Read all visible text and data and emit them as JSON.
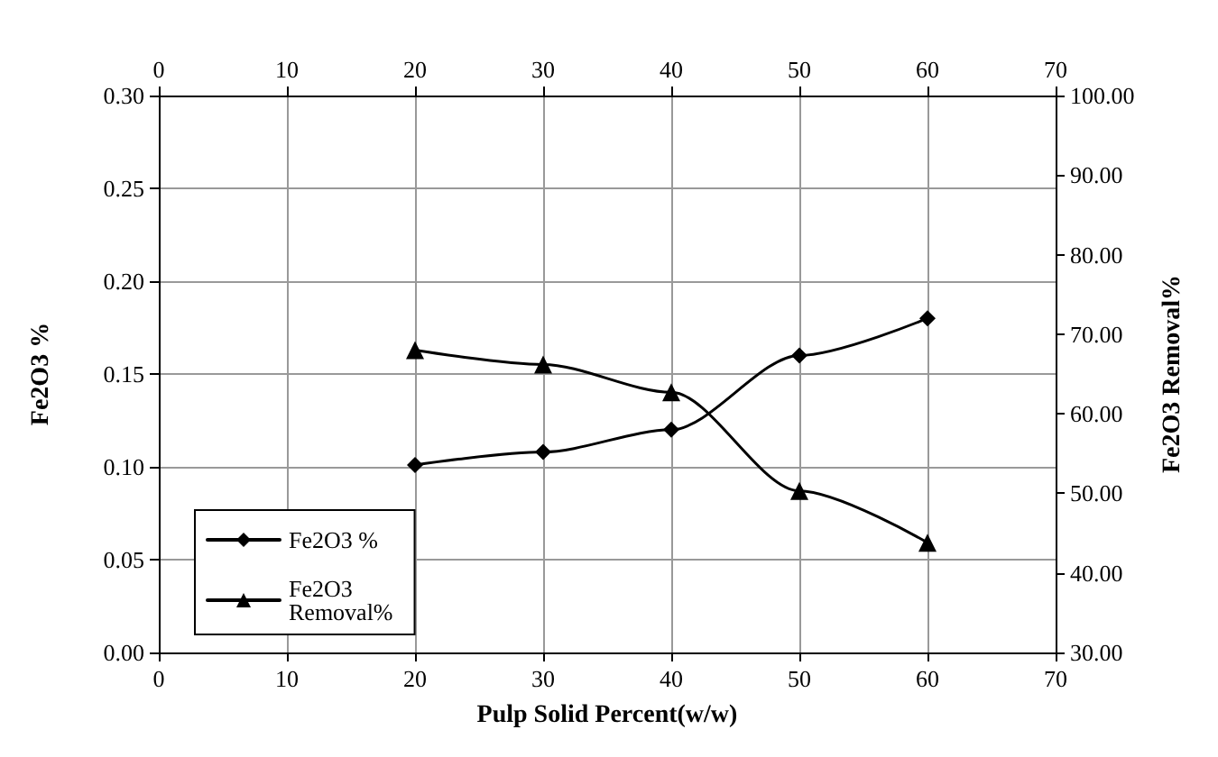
{
  "chart_data": {
    "type": "line",
    "xlabel": "Pulp Solid Percent(w/w)",
    "ylabel": "Fe2O3 %",
    "y2label": "Fe2O3 Removal%",
    "x": [
      20,
      30,
      40,
      50,
      60
    ],
    "series": [
      {
        "name": "Fe2O3 %",
        "color": "#000000",
        "marker": "diamond",
        "values": [
          0.101,
          0.108,
          0.12,
          0.16,
          0.18
        ]
      },
      {
        "name": "Fe2O3 Removal%",
        "color": "#000000",
        "marker": "triangle",
        "axis": "y2",
        "values": [
          68.0,
          66.2,
          62.7,
          50.3,
          43.8
        ]
      }
    ],
    "xlim": [
      0,
      70
    ],
    "xticks": [
      0,
      10,
      20,
      30,
      40,
      50,
      60,
      70
    ],
    "x2lim": [
      0,
      70
    ],
    "x2ticks": [
      0,
      10,
      20,
      30,
      40,
      50,
      60,
      70
    ],
    "ylim": [
      0,
      0.3
    ],
    "yticks": [
      {
        "value": 0,
        "label": "0.00"
      },
      {
        "value": 0.05,
        "label": "0.05"
      },
      {
        "value": 0.1,
        "label": "0.10"
      },
      {
        "value": 0.15,
        "label": "0.15"
      },
      {
        "value": 0.2,
        "label": "0.20"
      },
      {
        "value": 0.25,
        "label": "0.25"
      },
      {
        "value": 0.3,
        "label": "0.30"
      }
    ],
    "y2lim": [
      30,
      100
    ],
    "y2ticks": [
      {
        "value": 30,
        "label": "30.00"
      },
      {
        "value": 40,
        "label": "40.00"
      },
      {
        "value": 50,
        "label": "50.00"
      },
      {
        "value": 60,
        "label": "60.00"
      },
      {
        "value": 70,
        "label": "70.00"
      },
      {
        "value": 80,
        "label": "80.00"
      },
      {
        "value": 90,
        "label": "90.00"
      },
      {
        "value": 100,
        "label": "100.00"
      }
    ],
    "grid": true,
    "legend": "bottom left",
    "line_style": "solid"
  }
}
